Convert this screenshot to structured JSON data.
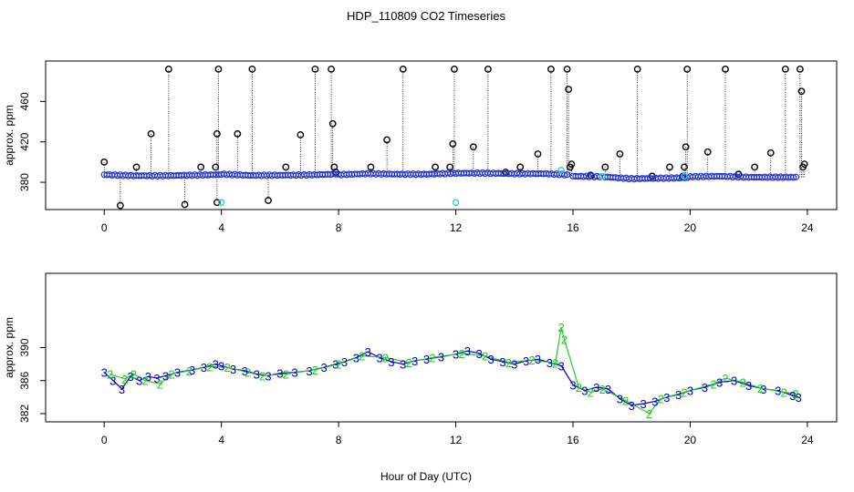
{
  "chart_data": [
    {
      "type": "scatter",
      "panel": "top",
      "title": "HDP_110809  CO2 Timeseries",
      "xlabel": "",
      "ylabel": "approx. ppm",
      "xlim": [
        -2.0,
        25.0
      ],
      "ylim": [
        353,
        500
      ],
      "xticks": [
        0,
        4,
        8,
        12,
        16,
        20,
        24
      ],
      "xtick_labels": [
        "0",
        "4",
        "8",
        "12",
        "16",
        "20",
        "24"
      ],
      "yticks": [
        380,
        420,
        460
      ],
      "ytick_labels": [
        "380",
        "420",
        "460"
      ],
      "baseline": [
        [
          0.0,
          387.5
        ],
        [
          1.0,
          386.5
        ],
        [
          2.0,
          386.5
        ],
        [
          3.0,
          387.0
        ],
        [
          3.9,
          387.5
        ],
        [
          4.0,
          388.0
        ],
        [
          5.0,
          386.8
        ],
        [
          6.0,
          387.0
        ],
        [
          7.0,
          387.3
        ],
        [
          7.9,
          388.0
        ],
        [
          8.0,
          387.5
        ],
        [
          9.0,
          388.5
        ],
        [
          10.0,
          388.0
        ],
        [
          11.0,
          388.0
        ],
        [
          12.0,
          389.0
        ],
        [
          13.0,
          389.0
        ],
        [
          14.0,
          388.5
        ],
        [
          15.0,
          388.5
        ],
        [
          15.8,
          387.5
        ],
        [
          16.0,
          386.0
        ],
        [
          17.0,
          385.5
        ],
        [
          18.0,
          383.5
        ],
        [
          19.0,
          384.0
        ],
        [
          19.9,
          384.5
        ],
        [
          20.0,
          385.5
        ],
        [
          21.0,
          386.0
        ],
        [
          22.0,
          385.0
        ],
        [
          23.0,
          385.0
        ],
        [
          23.7,
          385.0
        ]
      ],
      "spikes": [
        [
          0.0,
          400
        ],
        [
          0.55,
          357
        ],
        [
          1.1,
          395
        ],
        [
          1.6,
          428
        ],
        [
          2.2,
          492
        ],
        [
          2.75,
          358
        ],
        [
          3.3,
          395
        ],
        [
          3.8,
          395
        ],
        [
          3.85,
          428
        ],
        [
          3.9,
          492
        ],
        [
          3.85,
          360
        ],
        [
          4.55,
          428
        ],
        [
          5.05,
          492
        ],
        [
          5.6,
          362
        ],
        [
          6.2,
          395
        ],
        [
          6.7,
          427
        ],
        [
          7.2,
          492
        ],
        [
          7.75,
          492
        ],
        [
          7.8,
          438
        ],
        [
          7.85,
          395
        ],
        [
          7.9,
          390
        ],
        [
          9.1,
          395
        ],
        [
          9.65,
          422
        ],
        [
          10.2,
          492
        ],
        [
          11.3,
          395
        ],
        [
          11.8,
          395
        ],
        [
          11.9,
          418
        ],
        [
          11.95,
          492
        ],
        [
          12.6,
          415
        ],
        [
          13.1,
          492
        ],
        [
          13.7,
          390
        ],
        [
          14.2,
          395
        ],
        [
          14.8,
          408
        ],
        [
          15.25,
          492
        ],
        [
          15.8,
          492
        ],
        [
          15.85,
          472
        ],
        [
          15.9,
          395
        ],
        [
          15.95,
          398
        ],
        [
          16.6,
          387
        ],
        [
          17.1,
          395
        ],
        [
          17.6,
          408
        ],
        [
          18.2,
          492
        ],
        [
          18.7,
          386
        ],
        [
          19.3,
          395
        ],
        [
          19.75,
          386
        ],
        [
          19.8,
          395
        ],
        [
          19.85,
          415
        ],
        [
          19.9,
          492
        ],
        [
          20.6,
          410
        ],
        [
          21.2,
          492
        ],
        [
          21.65,
          388
        ],
        [
          22.2,
          395
        ],
        [
          22.75,
          409
        ],
        [
          23.25,
          492
        ],
        [
          23.75,
          492
        ],
        [
          23.8,
          470
        ],
        [
          23.85,
          395
        ],
        [
          23.9,
          398
        ]
      ],
      "cyan_points": [
        [
          4.0,
          360
        ],
        [
          12.0,
          360
        ],
        [
          15.6,
          392
        ],
        [
          17.0,
          386
        ],
        [
          19.8,
          386
        ]
      ]
    },
    {
      "type": "line",
      "panel": "bottom",
      "xlabel": "Hour of Day (UTC)",
      "ylabel": "approx. ppm",
      "xlim": [
        -2.0,
        25.0
      ],
      "ylim": [
        381.0,
        399.0
      ],
      "xticks": [
        0,
        4,
        8,
        12,
        16,
        20,
        24
      ],
      "xtick_labels": [
        "0",
        "4",
        "8",
        "12",
        "16",
        "20",
        "24"
      ],
      "yticks": [
        382,
        386,
        390
      ],
      "ytick_labels": [
        "382",
        "386",
        "390"
      ],
      "series": [
        {
          "name": "3",
          "color": "#0000cc",
          "points": [
            [
              0.0,
              387.0
            ],
            [
              0.3,
              386.0
            ],
            [
              0.6,
              385.0
            ],
            [
              0.9,
              386.5
            ],
            [
              1.2,
              386.0
            ],
            [
              1.5,
              386.5
            ],
            [
              1.8,
              386.3
            ],
            [
              2.1,
              386.6
            ],
            [
              2.5,
              387.0
            ],
            [
              3.0,
              387.3
            ],
            [
              3.4,
              387.6
            ],
            [
              3.8,
              388.0
            ],
            [
              4.0,
              387.8
            ],
            [
              4.4,
              387.4
            ],
            [
              4.8,
              387.2
            ],
            [
              5.2,
              386.8
            ],
            [
              5.6,
              386.6
            ],
            [
              6.0,
              386.9
            ],
            [
              6.5,
              387.0
            ],
            [
              7.0,
              387.2
            ],
            [
              7.5,
              387.6
            ],
            [
              7.9,
              388.0
            ],
            [
              8.2,
              388.3
            ],
            [
              8.6,
              388.8
            ],
            [
              9.0,
              389.5
            ],
            [
              9.4,
              388.8
            ],
            [
              9.8,
              388.3
            ],
            [
              10.2,
              388.0
            ],
            [
              10.6,
              388.4
            ],
            [
              11.0,
              388.6
            ],
            [
              11.5,
              388.9
            ],
            [
              12.0,
              389.2
            ],
            [
              12.4,
              389.6
            ],
            [
              12.8,
              389.3
            ],
            [
              13.2,
              388.6
            ],
            [
              13.6,
              388.3
            ],
            [
              14.0,
              388.0
            ],
            [
              14.4,
              388.4
            ],
            [
              14.8,
              388.6
            ],
            [
              15.2,
              388.2
            ],
            [
              15.6,
              387.8
            ],
            [
              16.0,
              385.5
            ],
            [
              16.4,
              384.8
            ],
            [
              16.8,
              385.2
            ],
            [
              17.2,
              385.0
            ],
            [
              17.6,
              383.8
            ],
            [
              18.0,
              383.0
            ],
            [
              18.4,
              383.2
            ],
            [
              18.8,
              383.5
            ],
            [
              19.2,
              384.0
            ],
            [
              19.6,
              384.3
            ],
            [
              20.0,
              384.8
            ],
            [
              20.5,
              385.2
            ],
            [
              21.0,
              385.8
            ],
            [
              21.5,
              386.0
            ],
            [
              22.0,
              385.4
            ],
            [
              22.5,
              385.0
            ],
            [
              23.0,
              384.8
            ],
            [
              23.5,
              384.2
            ],
            [
              23.7,
              384.0
            ]
          ]
        },
        {
          "name": "2",
          "color": "#22cc22",
          "points": [
            [
              0.2,
              386.8
            ],
            [
              0.7,
              386.2
            ],
            [
              1.0,
              386.8
            ],
            [
              1.4,
              386.0
            ],
            [
              1.9,
              385.6
            ],
            [
              2.3,
              386.8
            ],
            [
              2.9,
              387.2
            ],
            [
              3.6,
              387.7
            ],
            [
              4.2,
              387.6
            ],
            [
              4.9,
              387.0
            ],
            [
              5.4,
              386.6
            ],
            [
              6.2,
              386.8
            ],
            [
              7.2,
              387.3
            ],
            [
              8.0,
              388.0
            ],
            [
              8.8,
              389.0
            ],
            [
              9.6,
              388.8
            ],
            [
              10.4,
              388.2
            ],
            [
              11.2,
              388.8
            ],
            [
              12.2,
              389.3
            ],
            [
              13.0,
              389.0
            ],
            [
              13.8,
              388.2
            ],
            [
              14.6,
              388.5
            ],
            [
              15.4,
              388.1
            ],
            [
              15.6,
              392.5
            ],
            [
              15.7,
              391.0
            ],
            [
              16.2,
              385.2
            ],
            [
              16.6,
              384.6
            ],
            [
              17.0,
              385.0
            ],
            [
              17.8,
              383.6
            ],
            [
              18.6,
              382.0
            ],
            [
              19.0,
              383.8
            ],
            [
              19.8,
              384.6
            ],
            [
              20.8,
              385.6
            ],
            [
              21.2,
              386.3
            ],
            [
              21.8,
              385.8
            ],
            [
              22.4,
              385.1
            ],
            [
              23.2,
              384.6
            ],
            [
              23.6,
              384.4
            ]
          ]
        }
      ]
    }
  ]
}
